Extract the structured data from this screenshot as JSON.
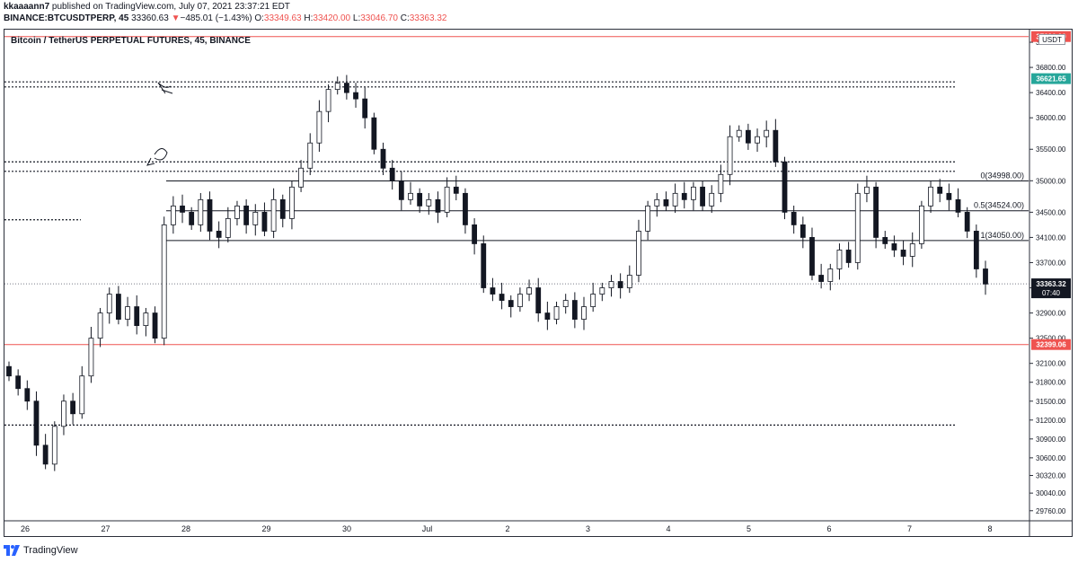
{
  "header": {
    "user": "kkaaaann7",
    "published": " published on TradingView.com, July 07, 2021 23:37:21 EDT",
    "symbol": "BINANCE:BTCUSDTPERP, 45",
    "last": "33360.63",
    "arrow": "▼",
    "change": "−485.01 (−1.43%)",
    "o_label": "O:",
    "o_val": "33349.63",
    "h_label": "H:",
    "h_val": "33420.00",
    "l_label": "L:",
    "l_val": "33046.70",
    "c_label": "C:",
    "c_val": "33363.32"
  },
  "chart_title": "Bitcoin / TetherUS PERPETUAL FUTURES, 45, BINANCE",
  "currency_button": "USDT",
  "footer": {
    "brand": "TradingView"
  },
  "colors": {
    "accent_red": "#ef5350",
    "accent_green": "#26a69a",
    "logo_blue": "#2962ff",
    "candle": "#131722"
  },
  "chart_data": {
    "type": "candlestick",
    "ylim": [
      29600,
      37400
    ],
    "y_ticks": [
      29760,
      30040,
      30320,
      30600,
      30900,
      31200,
      31500,
      31800,
      32100,
      32500,
      32900,
      33300,
      33700,
      34100,
      34500,
      35000,
      35500,
      36000,
      36400,
      36800,
      37200
    ],
    "y_tick_labels": [
      "29760.00",
      "30040.00",
      "30320.00",
      "30600.00",
      "30900.00",
      "31200.00",
      "31500.00",
      "31800.00",
      "32100.00",
      "32500.00",
      "32900.00",
      "33300.00",
      "33700.00",
      "34100.00",
      "34500.00",
      "35000.00",
      "35500.00",
      "36000.00",
      "36400.00",
      "36800.00",
      "37200.00"
    ],
    "x_ticks": [
      "26",
      "27",
      "28",
      "29",
      "30",
      "Jul",
      "2",
      "3",
      "4",
      "5",
      "6",
      "7",
      "8"
    ],
    "price_labels": [
      {
        "value": 36621.65,
        "text": "36621.65",
        "color": "#26a69a"
      },
      {
        "value": 33363.32,
        "text": "33363.32",
        "sub": "07:40",
        "color": "#131722"
      },
      {
        "value": 32399.06,
        "text": "32399.06",
        "color": "#ef5350"
      },
      {
        "value": 37290,
        "text": "37290.00",
        "color": "#ef5350"
      }
    ],
    "horizontal_lines": [
      {
        "value": 37290,
        "style": "solid",
        "color": "#ef5350"
      },
      {
        "value": 32399.06,
        "style": "solid",
        "color": "#ef5350"
      },
      {
        "value": 36570,
        "style": "dotted"
      },
      {
        "value": 36490,
        "style": "dotted"
      },
      {
        "value": 35300,
        "style": "dotted"
      },
      {
        "value": 35150,
        "style": "dotted"
      },
      {
        "value": 34380,
        "style": "dotted",
        "partial": true
      },
      {
        "value": 31120,
        "style": "dotted"
      },
      {
        "value": 33363.32,
        "style": "dotted-last"
      }
    ],
    "fib_levels": [
      {
        "ratio": "0",
        "value": 34998.0,
        "label": "0(34998.00)"
      },
      {
        "ratio": "0.5",
        "value": 34524.0,
        "label": "0.5(34524.00)"
      },
      {
        "ratio": "1",
        "value": 34050.0,
        "label": "1(34050.00)"
      }
    ],
    "closes": [
      31900,
      31700,
      31500,
      30800,
      30500,
      31100,
      31500,
      31300,
      31900,
      32500,
      32900,
      33200,
      32800,
      33000,
      32700,
      32900,
      32500,
      34300,
      34600,
      34500,
      34300,
      34700,
      34200,
      34100,
      34400,
      34600,
      34300,
      34500,
      34200,
      34700,
      34400,
      34900,
      35200,
      35600,
      36100,
      36450,
      36550,
      36400,
      36300,
      36000,
      35500,
      35200,
      35000,
      34700,
      34800,
      34600,
      34700,
      34500,
      34900,
      34800,
      34300,
      34000,
      33300,
      33200,
      33100,
      33000,
      33200,
      33300,
      32900,
      32800,
      33000,
      33100,
      32800,
      33000,
      33200,
      33300,
      33400,
      33300,
      33500,
      34200,
      34600,
      34700,
      34600,
      34800,
      34700,
      34900,
      34600,
      34800,
      35100,
      35700,
      35800,
      35600,
      35700,
      35800,
      35300,
      34500,
      34300,
      34100,
      33500,
      33400,
      33600,
      33900,
      33700,
      34800,
      34900,
      34100,
      34000,
      33900,
      33800,
      34000,
      34600,
      34900,
      34800,
      34700,
      34500,
      34200,
      33600,
      33360
    ]
  }
}
